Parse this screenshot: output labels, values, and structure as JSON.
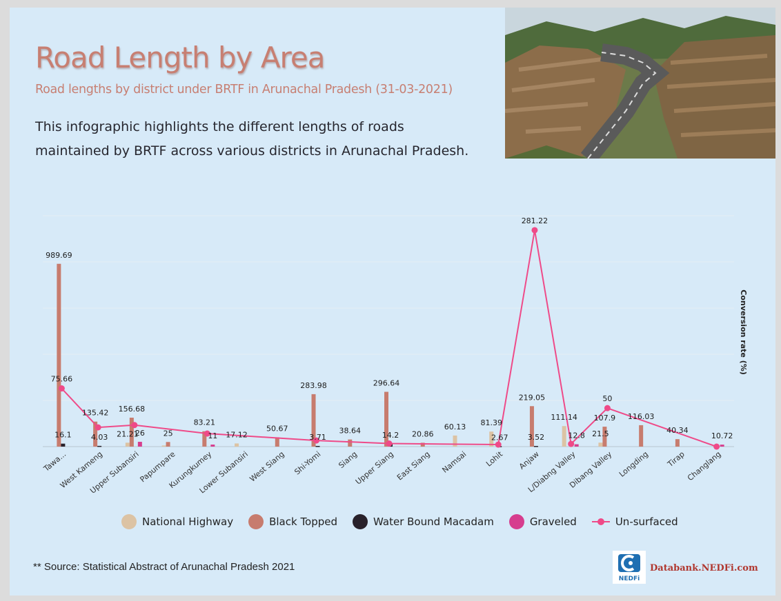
{
  "header": {
    "title": "Road Length by Area",
    "subtitle": "Road lengths by district under BRTF in Arunachal Pradesh (31-03-2021)",
    "description": "This infographic highlights the different lengths of roads maintained by BRTF across various districts in Arunachal Pradesh."
  },
  "colors": {
    "background": "#d7eaf8",
    "title": "#c77f72",
    "national_highway": "#dcc3a4",
    "black_topped": "#c77c6e",
    "water_bound": "#28212b",
    "graveled": "#d63d8e",
    "unsurfaced": "#ef4a88"
  },
  "photo": {
    "subject": "winding mountain highway",
    "icon": "landscape-photo"
  },
  "chart_data": {
    "type": "bar",
    "categories": [
      "Tawa...",
      "West Kameng",
      "Upper Subansiri",
      "Papumpare",
      "Kurungkumey",
      "Lower Subansiri",
      "West Siang",
      "Shi-Yomi",
      "Siang",
      "Upper Siang",
      "East Siang",
      "Namsai",
      "Lohit",
      "Anjaw",
      "L/Diabng Valley",
      "Dibang Valley",
      "Longding",
      "Tirap",
      "Changlang"
    ],
    "series": [
      {
        "name": "National Highway",
        "type": "bar",
        "values": [
          0,
          0,
          21.21,
          6,
          0,
          17.12,
          0,
          0,
          0,
          0,
          0,
          60.13,
          81.39,
          0,
          111.14,
          21.5,
          0,
          0,
          0
        ]
      },
      {
        "name": "Black Topped",
        "type": "bar",
        "values": [
          989.69,
          135.42,
          156.68,
          25,
          83.21,
          0,
          50.67,
          283.98,
          38.64,
          296.64,
          20.86,
          0,
          0,
          219.05,
          0,
          107.9,
          116.03,
          40.34,
          0
        ]
      },
      {
        "name": "Water Bound Macadam",
        "type": "bar",
        "values": [
          16.1,
          4.03,
          0,
          0,
          0,
          0,
          0,
          3.71,
          0,
          14.2,
          0,
          0,
          2.67,
          3.52,
          0,
          0,
          0,
          0,
          0
        ]
      },
      {
        "name": "Graveled",
        "type": "bar",
        "values": [
          0,
          0,
          26,
          0,
          11,
          0,
          0,
          0,
          0,
          0,
          0,
          0,
          0,
          0,
          12.8,
          0,
          0,
          0,
          10.72
        ]
      },
      {
        "name": "Un-surfaced",
        "type": "line",
        "values": [
          75.66,
          25,
          28,
          null,
          17,
          null,
          null,
          8,
          null,
          4,
          null,
          null,
          2.67,
          281.22,
          3.52,
          50,
          null,
          null,
          0
        ]
      }
    ],
    "data_labels": [
      {
        "cat": 0,
        "series": "Black Topped",
        "text": "989.69"
      },
      {
        "cat": 0,
        "series": "Un-surfaced",
        "text": "75.66"
      },
      {
        "cat": 0,
        "series": "Water Bound Macadam",
        "text": "16.1"
      },
      {
        "cat": 1,
        "series": "Black Topped",
        "text": "135.42"
      },
      {
        "cat": 1,
        "series": "Water Bound Macadam",
        "text": "4.03"
      },
      {
        "cat": 2,
        "series": "Black Topped",
        "text": "156.68"
      },
      {
        "cat": 2,
        "series": "National Highway",
        "text": "21.21"
      },
      {
        "cat": 2,
        "series": "Graveled",
        "text": "26"
      },
      {
        "cat": 3,
        "series": "Black Topped",
        "text": "25"
      },
      {
        "cat": 4,
        "series": "Black Topped",
        "text": "83.21"
      },
      {
        "cat": 4,
        "series": "Graveled",
        "text": "11"
      },
      {
        "cat": 5,
        "series": "National Highway",
        "text": "17.12"
      },
      {
        "cat": 6,
        "series": "Black Topped",
        "text": "50.67"
      },
      {
        "cat": 7,
        "series": "Black Topped",
        "text": "283.98"
      },
      {
        "cat": 7,
        "series": "Water Bound Macadam",
        "text": "3.71"
      },
      {
        "cat": 8,
        "series": "Black Topped",
        "text": "38.64"
      },
      {
        "cat": 9,
        "series": "Black Topped",
        "text": "296.64"
      },
      {
        "cat": 9,
        "series": "Water Bound Macadam",
        "text": "14.2"
      },
      {
        "cat": 10,
        "series": "Black Topped",
        "text": "20.86"
      },
      {
        "cat": 11,
        "series": "National Highway",
        "text": "60.13"
      },
      {
        "cat": 12,
        "series": "National Highway",
        "text": "81.39"
      },
      {
        "cat": 12,
        "series": "Water Bound Macadam",
        "text": "2.67"
      },
      {
        "cat": 13,
        "series": "Un-surfaced",
        "text": "281.22"
      },
      {
        "cat": 13,
        "series": "Black Topped",
        "text": "219.05"
      },
      {
        "cat": 13,
        "series": "Water Bound Macadam",
        "text": "3.52"
      },
      {
        "cat": 14,
        "series": "National Highway",
        "text": "111.14"
      },
      {
        "cat": 14,
        "series": "Graveled",
        "text": "12.8"
      },
      {
        "cat": 15,
        "series": "Un-surfaced",
        "text": "50"
      },
      {
        "cat": 15,
        "series": "Black Topped",
        "text": "107.9"
      },
      {
        "cat": 15,
        "series": "National Highway",
        "text": "21.5"
      },
      {
        "cat": 16,
        "series": "Black Topped",
        "text": "116.03"
      },
      {
        "cat": 17,
        "series": "Black Topped",
        "text": "40.34"
      },
      {
        "cat": 18,
        "series": "Graveled",
        "text": "10.72"
      }
    ],
    "ylim": [
      0,
      1250
    ],
    "y2label": "Conversion rate (%)",
    "y2lim": [
      0,
      300
    ],
    "grid": true,
    "legend_position": "bottom"
  },
  "legend": {
    "items": [
      {
        "label": "National Highway"
      },
      {
        "label": "Black Topped"
      },
      {
        "label": "Water Bound Macadam"
      },
      {
        "label": "Graveled"
      },
      {
        "label": "Un-surfaced"
      }
    ]
  },
  "footer": {
    "source": "** Source: Statistical Abstract of Arunachal Pradesh 2021",
    "brand": "Databank.NEDFi.com",
    "logo_text": "NEDFi"
  }
}
